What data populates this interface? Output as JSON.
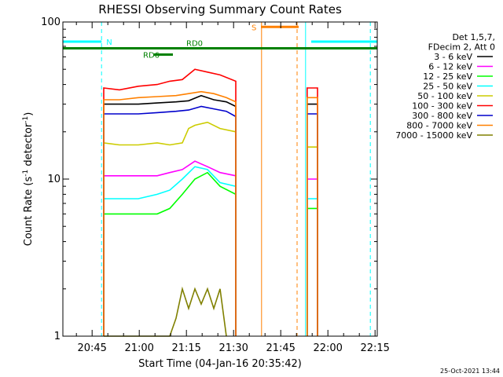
{
  "chart_data": {
    "type": "line",
    "title": "RHESSI Observing Summary Count Rates",
    "xlabel": "Start Time (04-Jan-16 20:35:42)",
    "ylabel_main": "Count Rate (s",
    "ylabel_sup1": "-1",
    "ylabel_mid": " detector",
    "ylabel_sup2": "-1",
    "ylabel_end": ")",
    "y_scale": "log",
    "ylim": [
      1,
      100
    ],
    "xlim_minutes_after_start": [
      0,
      100
    ],
    "y_ticks": [
      "1",
      "10",
      "100"
    ],
    "x_ticks": [
      {
        "label": "20:45",
        "t": 9.3
      },
      {
        "label": "21:00",
        "t": 24.3
      },
      {
        "label": "21:15",
        "t": 39.3
      },
      {
        "label": "21:30",
        "t": 54.3
      },
      {
        "label": "21:45",
        "t": 69.3
      },
      {
        "label": "22:00",
        "t": 84.3
      },
      {
        "label": "22:15",
        "t": 99.3
      }
    ],
    "legend_header": [
      "Det 1,5,7,",
      "FDecim 2, Att 0"
    ],
    "legend_placement": "right",
    "series": [
      {
        "name": "3 - 6 keV",
        "color": "#000000",
        "segments": [
          {
            "t": [
              13,
              18,
              24,
              30,
              36,
              40,
              44,
              48,
              52,
              55
            ],
            "v": [
              30,
              30,
              30,
              30.5,
              31,
              31.5,
              34,
              32,
              31,
              29
            ]
          },
          {
            "t": [
              77.7,
              81
            ],
            "v": [
              30,
              30
            ]
          }
        ]
      },
      {
        "name": "6 - 12 keV",
        "color": "#ff00ff",
        "segments": [
          {
            "t": [
              13,
              18,
              24,
              30,
              34,
              38,
              42,
              46,
              50,
              55
            ],
            "v": [
              10.5,
              10.5,
              10.5,
              10.5,
              11,
              11.5,
              13,
              12,
              11,
              10.5
            ]
          },
          {
            "t": [
              77.7,
              81
            ],
            "v": [
              10,
              10
            ]
          }
        ]
      },
      {
        "name": "12 - 25 keV",
        "color": "#00ff00",
        "segments": [
          {
            "t": [
              13,
              18,
              24,
              30,
              34,
              38,
              42,
              46,
              50,
              55
            ],
            "v": [
              6,
              6,
              6,
              6,
              6.5,
              8,
              10,
              11,
              9,
              8
            ]
          },
          {
            "t": [
              77.7,
              81
            ],
            "v": [
              6.5,
              6.5
            ]
          }
        ]
      },
      {
        "name": "25 - 50 keV",
        "color": "#00ffff",
        "segments": [
          {
            "t": [
              13,
              18,
              24,
              30,
              34,
              38,
              42,
              46,
              50,
              55
            ],
            "v": [
              7.5,
              7.5,
              7.5,
              8,
              8.5,
              10,
              12,
              11.5,
              9.5,
              9
            ]
          },
          {
            "t": [
              77.7,
              81
            ],
            "v": [
              7.5,
              7.5
            ]
          }
        ]
      },
      {
        "name": "50 - 100 keV",
        "color": "#cccc00",
        "segments": [
          {
            "t": [
              13,
              18,
              24,
              30,
              34,
              38,
              40,
              42,
              46,
              50,
              55
            ],
            "v": [
              17,
              16.5,
              16.5,
              17,
              16.5,
              17,
              21,
              22,
              23,
              21,
              20
            ]
          },
          {
            "t": [
              77.7,
              81
            ],
            "v": [
              16,
              16
            ]
          }
        ]
      },
      {
        "name": "100 - 300 keV",
        "color": "#ff0000",
        "segments": [
          {
            "t": [
              13,
              18,
              24,
              30,
              34,
              38,
              42,
              46,
              50,
              55
            ],
            "v": [
              38,
              37,
              39,
              40,
              42,
              43,
              50,
              48,
              46,
              42
            ]
          },
          {
            "t": [
              77.7,
              81
            ],
            "v": [
              38,
              38
            ]
          }
        ]
      },
      {
        "name": "300 - 800 keV",
        "color": "#0000cc",
        "segments": [
          {
            "t": [
              13,
              18,
              24,
              30,
              36,
              40,
              44,
              48,
              52,
              55
            ],
            "v": [
              26,
              26,
              26,
              26.5,
              27,
              27.5,
              29,
              28,
              27,
              25
            ]
          },
          {
            "t": [
              77.7,
              81
            ],
            "v": [
              26,
              26
            ]
          }
        ]
      },
      {
        "name": "800 - 7000 keV",
        "color": "#ff8000",
        "segments": [
          {
            "t": [
              13,
              18,
              24,
              30,
              36,
              40,
              44,
              48,
              52,
              55
            ],
            "v": [
              32,
              32,
              33,
              33.5,
              34,
              35,
              36,
              35,
              33,
              31
            ]
          },
          {
            "t": [
              77.7,
              81
            ],
            "v": [
              33,
              33
            ]
          }
        ]
      },
      {
        "name": "7000 - 15000 keV",
        "color": "#808000",
        "segments": [
          {
            "t": [
              13,
              34,
              36,
              38,
              40,
              42,
              44,
              46,
              48,
              50,
              52
            ],
            "v": [
              1,
              1,
              1.3,
              2,
              1.5,
              2,
              1.6,
              2,
              1.5,
              2,
              1
            ]
          }
        ]
      }
    ],
    "flag_bars": [
      {
        "label": "N",
        "color": "#00ffff",
        "v": 75,
        "segments": [
          [
            0,
            12.3
          ],
          [
            79,
            100
          ]
        ]
      },
      {
        "label": "S",
        "color": "#ff8000",
        "v": 93,
        "segments": [
          [
            63,
            75
          ]
        ]
      },
      {
        "label": "RD0",
        "color": "#008000",
        "v": 68,
        "segments": [
          [
            0,
            100
          ]
        ]
      },
      {
        "label": "RD6",
        "color": "#008000",
        "v": 62,
        "segments": [
          [
            29,
            35
          ]
        ]
      }
    ],
    "event_lines": [
      {
        "kind": "dashed",
        "color": "#00ffff",
        "t": 12.3
      },
      {
        "kind": "dashed",
        "color": "#00ffff",
        "t": 97.8
      },
      {
        "kind": "solid",
        "color": "#00ffff",
        "t": 77.2
      },
      {
        "kind": "solid",
        "color": "#ff8000",
        "t": 63.2
      },
      {
        "kind": "dashed",
        "color": "#ff8000",
        "t": 74.5
      }
    ],
    "grid": false
  },
  "footer": {
    "timestamp": "25-Oct-2021 13:44"
  }
}
